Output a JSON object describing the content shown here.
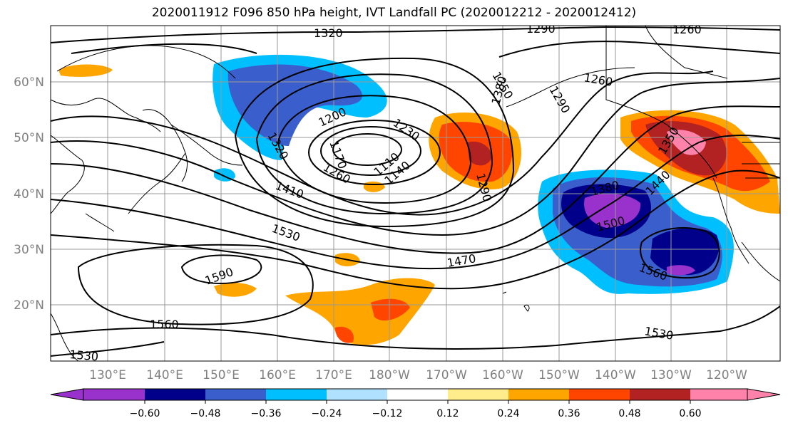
{
  "title": "2020011912 F096 850 hPa height, IVT Landfall PC (2020012212 - 2020012412)",
  "map": {
    "lon_labels": [
      "130°E",
      "140°E",
      "150°E",
      "160°E",
      "170°E",
      "180°W",
      "170°W",
      "160°W",
      "150°W",
      "140°W",
      "130°W",
      "120°W"
    ],
    "lat_labels": [
      "60°N",
      "50°N",
      "40°N",
      "30°N",
      "20°N"
    ],
    "contour_labels": [
      "1320",
      "1290",
      "1260",
      "1350",
      "1260",
      "1290",
      "1380",
      "1200",
      "1230",
      "1170",
      "1110",
      "1140",
      "1260",
      "1320",
      "1290",
      "1410",
      "1380",
      "1350",
      "1440",
      "1500",
      "1530",
      "1470",
      "1560",
      "1590",
      "1560",
      "1530",
      "1530"
    ]
  },
  "colorbar": {
    "colors": [
      "#9932cc",
      "#00008b",
      "#3a5fcd",
      "#00bfff",
      "#b0e2ff",
      "#ffffff",
      "#ffec8b",
      "#ffa500",
      "#ff4500",
      "#b22222",
      "#ff82ab"
    ],
    "tick_labels": [
      "−0.60",
      "−0.48",
      "−0.36",
      "−0.24",
      "−0.12",
      "0.12",
      "0.24",
      "0.36",
      "0.48",
      "0.60"
    ]
  }
}
